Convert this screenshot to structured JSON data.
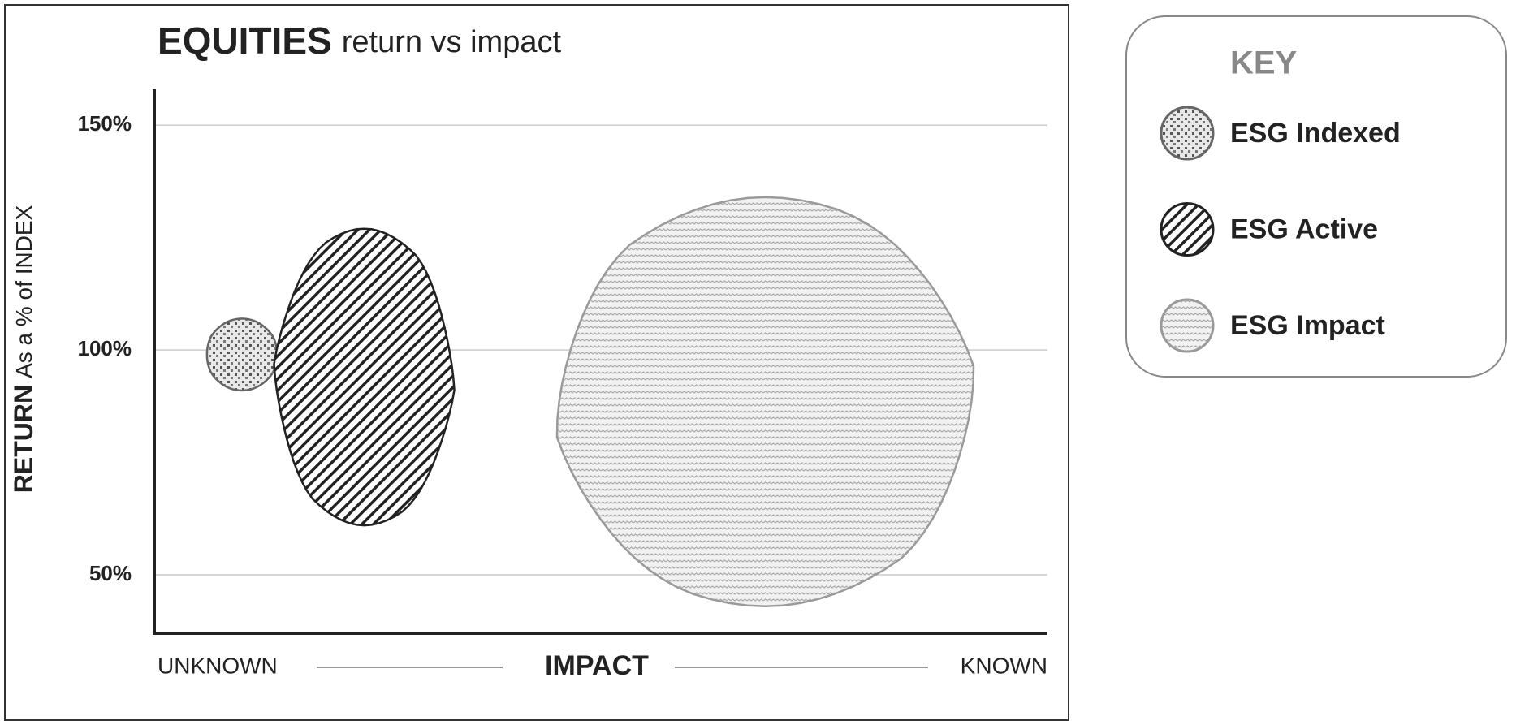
{
  "chart_data": {
    "type": "range-blob",
    "title": "EQUITIES",
    "subtitle": "return vs impact",
    "y_label": "RETURN",
    "y_sublabel": "As a % of INDEX",
    "x_label": "IMPACT",
    "x_low_label": "UNKNOWN",
    "x_high_label": "KNOWN",
    "legend_title": "KEY",
    "ylim": [
      37,
      158
    ],
    "yticks": [
      {
        "value": 50,
        "label": "50%"
      },
      {
        "value": 100,
        "label": "100%"
      },
      {
        "value": 150,
        "label": "150%"
      }
    ],
    "grid": true,
    "series": [
      {
        "name": "ESG Indexed",
        "color": "#666666",
        "pattern": "dots",
        "range": [
          91,
          107
        ]
      },
      {
        "name": "ESG Active",
        "color": "#222222",
        "pattern": "stripes",
        "range": [
          61,
          127
        ]
      },
      {
        "name": "ESG Impact",
        "color": "#9a9a9a",
        "pattern": "waves",
        "range": [
          43,
          134
        ]
      }
    ]
  }
}
